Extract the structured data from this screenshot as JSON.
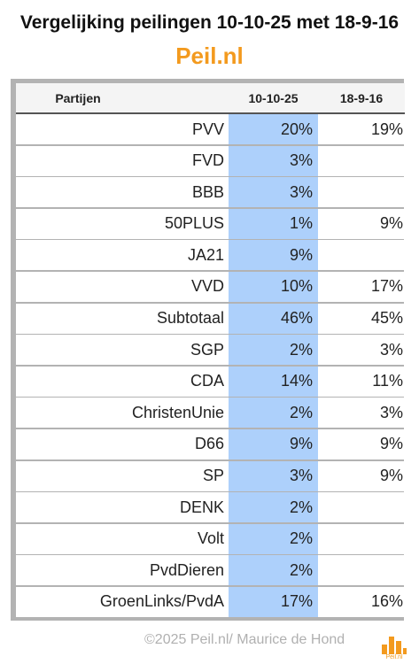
{
  "header": {
    "title": "Vergelijking peilingen 10-10-25 met 18-9-16",
    "subtitle": "Peil.nl"
  },
  "table": {
    "columns": [
      "Partijen",
      "10-10-25",
      "18-9-16"
    ],
    "rows": [
      {
        "party": "PVV",
        "now": "20%",
        "old": "19%"
      },
      {
        "party": "FVD",
        "now": "3%",
        "old": ""
      },
      {
        "party": "BBB",
        "now": "3%",
        "old": ""
      },
      {
        "party": "50PLUS",
        "now": "1%",
        "old": "9%"
      },
      {
        "party": "JA21",
        "now": "9%",
        "old": ""
      },
      {
        "party": "VVD",
        "now": "10%",
        "old": "17%"
      },
      {
        "party": "Subtotaal",
        "now": "46%",
        "old": "45%"
      },
      {
        "party": "SGP",
        "now": "2%",
        "old": "3%"
      },
      {
        "party": "CDA",
        "now": "14%",
        "old": "11%"
      },
      {
        "party": "ChristenUnie",
        "now": "2%",
        "old": "3%"
      },
      {
        "party": "D66",
        "now": "9%",
        "old": "9%"
      },
      {
        "party": "SP",
        "now": "3%",
        "old": "9%"
      },
      {
        "party": "DENK",
        "now": "2%",
        "old": ""
      },
      {
        "party": "Volt",
        "now": "2%",
        "old": ""
      },
      {
        "party": "PvdDieren",
        "now": "2%",
        "old": ""
      },
      {
        "party": "GroenLinks/PvdA",
        "now": "17%",
        "old": "16%"
      }
    ]
  },
  "footer": {
    "copyright": "©2025 Peil.nl/ Maurice de Hond",
    "logo_text": "Peil.nl"
  },
  "colors": {
    "accent": "#f39a1e",
    "highlight_column": "#add0fb",
    "frame": "#b3b3b3"
  }
}
